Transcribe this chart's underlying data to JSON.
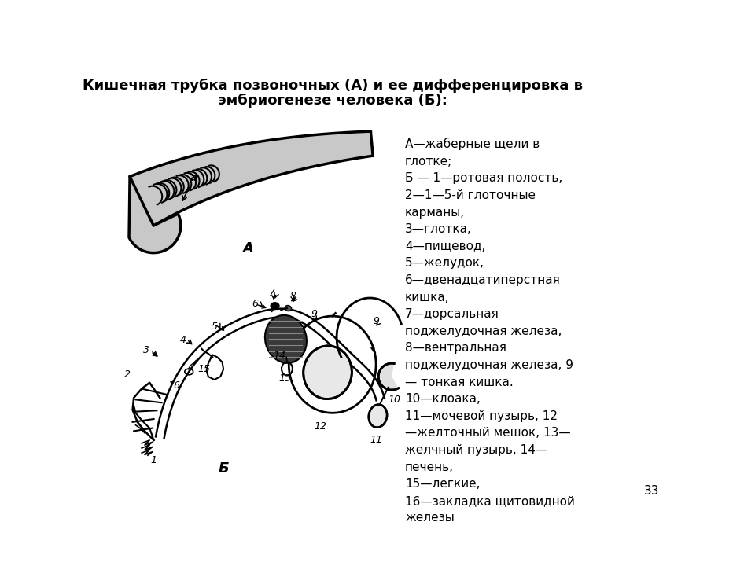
{
  "title_line1": "Кишечная трубка позвоночных (А) и ее дифференцировка в",
  "title_line2": "эмбриогенезе человека (Б):",
  "title_fontsize": 13,
  "legend_text": "А—жаберные щели в\nглотке;\nБ — 1—ротовая полость,\n2—1—5-й глоточные\nкарманы,\n3—глотка,\n4—пищевод,\n5—желудок,\n6—двенадцатиперстная\nкишка,\n7—дорсальная\nподжелудочная железа,\n8—вентральная\nподжелудочная железа, 9\n— тонкая кишка.\n10—клоака,\n11—мочевой пузырь, 12\n—желточный мешок, 13—\nжелчный пузырь, 14—\nпечень,\n15—легкие,\n16—закладка щитовидной\nжелезы",
  "page_number": "33",
  "bg_color": "#ffffff",
  "text_color": "#000000",
  "label_A": "А",
  "label_B": "Б",
  "label_a": "а"
}
